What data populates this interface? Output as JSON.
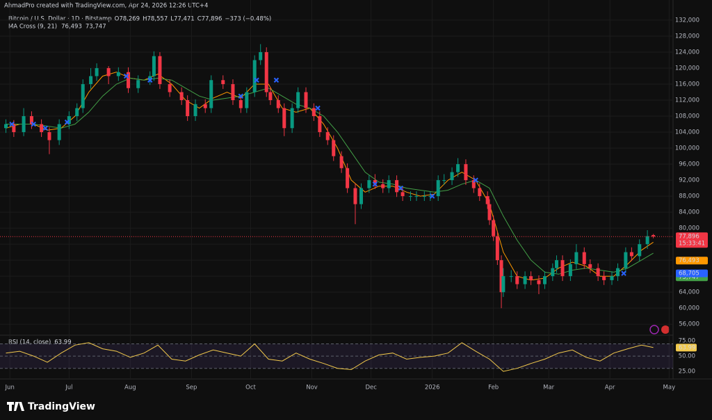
{
  "header": {
    "credit": "AhmadPro created with TradingView.com, Apr 24, 2026 12:26 UTC+4",
    "brand": "TradingView"
  },
  "chart_data": [
    {
      "type": "candlestick",
      "title": "Bitcoin / U.S. Dollar · 1D · Bitstamp",
      "ohlc_legend": [
        "O78,269",
        "H78,557",
        "L77,471",
        "C77,896",
        "−373 (−0.48%)"
      ],
      "indicator_name": "MA Cross (9, 21)",
      "up_color": "#089981",
      "down_color": "#f23645",
      "x": [
        -2,
        2,
        7,
        11,
        16,
        20,
        25,
        30,
        34,
        37,
        41,
        44,
        50,
        55,
        60,
        65,
        71,
        73,
        76,
        81,
        87,
        90,
        94,
        99,
        102,
        108,
        113,
        117,
        120,
        124,
        127,
        130,
        132,
        136,
        139,
        143,
        146,
        150,
        154,
        157,
        161,
        164,
        168,
        171,
        175,
        178,
        182,
        185,
        189,
        192,
        196,
        199,
        203,
        206,
        210,
        213,
        217,
        220,
        224,
        227,
        231,
        235,
        238,
        242,
        243,
        245,
        247,
        249,
        250,
        254,
        257,
        261,
        264,
        268,
        271,
        275,
        277,
        280,
        284,
        287,
        291,
        294,
        298,
        301,
        305,
        308,
        312,
        315,
        319,
        323,
        326
      ],
      "open": [
        105000,
        106000,
        104000,
        108000,
        106000,
        104000,
        102000,
        106000,
        108000,
        110000,
        116000,
        118000,
        120000,
        118000,
        119000,
        115000,
        117000,
        118000,
        123000,
        116000,
        114000,
        112000,
        108000,
        111000,
        110000,
        117000,
        116000,
        112000,
        110000,
        114000,
        122000,
        124000,
        114000,
        112000,
        110000,
        105000,
        110000,
        114000,
        110000,
        108000,
        104000,
        102000,
        98000,
        95000,
        90000,
        86000,
        90000,
        92000,
        91000,
        90000,
        92000,
        89000,
        88000,
        88000,
        88000,
        88000,
        88000,
        92000,
        92000,
        94000,
        96000,
        92000,
        90000,
        88000,
        86000,
        82000,
        78000,
        72000,
        64000,
        68000,
        68000,
        66000,
        68000,
        67000,
        66000,
        68000,
        70000,
        72000,
        68000,
        71000,
        74000,
        71000,
        70000,
        68000,
        67000,
        68000,
        70000,
        74000,
        73000,
        76000,
        78269
      ],
      "high": [
        107200,
        107000,
        110000,
        109200,
        107200,
        105200,
        107200,
        109200,
        111200,
        117200,
        120000,
        121200,
        120500,
        120200,
        120200,
        118200,
        119200,
        124200,
        124000,
        117200,
        115200,
        113200,
        112200,
        112200,
        118200,
        118200,
        117200,
        113200,
        115200,
        123200,
        126000,
        125200,
        115200,
        113200,
        111200,
        111200,
        115200,
        115200,
        111200,
        109200,
        105200,
        103200,
        99200,
        96200,
        91200,
        91200,
        93200,
        93500,
        92200,
        93200,
        93200,
        90200,
        89200,
        89200,
        89200,
        89200,
        93200,
        93500,
        95200,
        97500,
        97200,
        93200,
        91200,
        89200,
        87200,
        83200,
        79200,
        73200,
        70000,
        69500,
        69200,
        69200,
        69200,
        68200,
        69200,
        71200,
        73200,
        73200,
        72200,
        76000,
        75200,
        72200,
        71200,
        69200,
        69200,
        71200,
        75200,
        75200,
        77200,
        79500,
        78557
      ],
      "low": [
        103800,
        102800,
        103000,
        104800,
        102800,
        98500,
        100800,
        104800,
        106800,
        108800,
        114800,
        116800,
        116000,
        116800,
        113800,
        113800,
        115800,
        116800,
        114800,
        112800,
        110800,
        106800,
        106800,
        108800,
        108800,
        114800,
        110800,
        108800,
        108800,
        112800,
        120800,
        112800,
        110800,
        108800,
        103000,
        103800,
        108800,
        108800,
        106800,
        102800,
        100800,
        96800,
        93800,
        88800,
        81000,
        84800,
        88800,
        89800,
        88800,
        88800,
        87800,
        86800,
        86800,
        86800,
        86800,
        86800,
        86800,
        90800,
        90800,
        92800,
        90800,
        88800,
        86800,
        84800,
        80800,
        76800,
        70800,
        60000,
        62800,
        66500,
        64800,
        64800,
        65800,
        63500,
        64800,
        66800,
        68800,
        66800,
        66800,
        69800,
        69800,
        68800,
        66800,
        65800,
        65800,
        66800,
        68800,
        71800,
        71800,
        74800,
        77471
      ],
      "close": [
        106000,
        104000,
        108000,
        106000,
        104000,
        102000,
        106000,
        108000,
        110000,
        116000,
        118000,
        120000,
        118000,
        119000,
        115000,
        117000,
        118000,
        123000,
        116000,
        114000,
        112000,
        108000,
        111000,
        110000,
        117000,
        116000,
        112000,
        110000,
        114000,
        122000,
        124000,
        114000,
        112000,
        110000,
        105000,
        110000,
        114000,
        110000,
        108000,
        104000,
        102000,
        98000,
        95000,
        90000,
        86000,
        90000,
        92000,
        91000,
        90000,
        92000,
        89000,
        88000,
        88000,
        88000,
        88000,
        88000,
        92000,
        92000,
        94000,
        96000,
        92000,
        90000,
        88000,
        86000,
        82000,
        78000,
        72000,
        64000,
        68000,
        68000,
        66000,
        68000,
        67000,
        66000,
        68000,
        70000,
        72000,
        68000,
        71000,
        74000,
        71000,
        70000,
        68000,
        67000,
        68000,
        70000,
        74000,
        73000,
        76000,
        78000,
        77896
      ],
      "last_price_label": "77,896",
      "countdown": "15:33:41",
      "series": [
        {
          "color": "#ff9800",
          "last_label": "76,493",
          "x": [
            -2,
            5,
            12,
            19,
            26,
            33,
            40,
            47,
            54,
            61,
            68,
            75,
            82,
            89,
            96,
            103,
            110,
            117,
            124,
            131,
            138,
            145,
            152,
            159,
            166,
            173,
            180,
            187,
            194,
            201,
            208,
            215,
            222,
            229,
            236,
            243,
            250,
            257,
            264,
            271,
            278,
            285,
            292,
            299,
            306,
            313,
            320,
            326
          ],
          "values": [
            105000,
            106000,
            106000,
            104500,
            105000,
            108000,
            114000,
            118000,
            119000,
            117500,
            117000,
            118500,
            116000,
            112000,
            110000,
            112500,
            114000,
            112500,
            116000,
            116000,
            110000,
            109000,
            110000,
            106000,
            100000,
            92000,
            89000,
            90500,
            90500,
            89000,
            88000,
            88500,
            92000,
            94000,
            92000,
            86000,
            74000,
            68000,
            67000,
            67500,
            70000,
            71500,
            70500,
            68000,
            68000,
            71000,
            74500,
            76493
          ]
        },
        {
          "color": "#43a047",
          "last_label": "73,747",
          "x": [
            -2,
            5,
            12,
            19,
            26,
            33,
            40,
            47,
            54,
            61,
            68,
            75,
            82,
            89,
            96,
            103,
            110,
            117,
            124,
            131,
            138,
            145,
            152,
            159,
            166,
            173,
            180,
            187,
            194,
            201,
            208,
            215,
            222,
            229,
            236,
            243,
            250,
            257,
            264,
            271,
            278,
            285,
            292,
            299,
            306,
            313,
            320,
            326
          ],
          "values": [
            106000,
            106000,
            106000,
            105500,
            105000,
            106000,
            109000,
            113000,
            116000,
            117500,
            117000,
            117500,
            117000,
            115000,
            113000,
            112000,
            112500,
            113000,
            114000,
            115000,
            113000,
            111000,
            110000,
            108000,
            104000,
            99000,
            94000,
            91500,
            91000,
            90000,
            89500,
            89000,
            89500,
            91000,
            92000,
            90000,
            83000,
            77000,
            72000,
            69000,
            68500,
            69500,
            70000,
            69500,
            69000,
            70000,
            72000,
            73747
          ]
        }
      ],
      "crosses": {
        "color": "#2962ff",
        "x": [
          1,
          12,
          18,
          29,
          59,
          71,
          117,
          125,
          135,
          156,
          185,
          198,
          214,
          236,
          311
        ],
        "values": [
          106000,
          106000,
          105000,
          106500,
          118000,
          117000,
          113000,
          117000,
          117000,
          110000,
          91000,
          90000,
          88000,
          92000,
          68700
        ]
      },
      "marker_tag": {
        "value": 68705,
        "label": "68,705",
        "color": "#2962ff"
      },
      "xlim": [
        -5,
        336
      ],
      "xticks": [
        {
          "value": 0,
          "label": "Jun"
        },
        {
          "value": 30,
          "label": "Jul"
        },
        {
          "value": 61,
          "label": "Aug"
        },
        {
          "value": 92,
          "label": "Sep"
        },
        {
          "value": 122,
          "label": "Oct"
        },
        {
          "value": 153,
          "label": "Nov"
        },
        {
          "value": 183,
          "label": "Dec"
        },
        {
          "value": 214,
          "label": "2026"
        },
        {
          "value": 245,
          "label": "Feb"
        },
        {
          "value": 273,
          "label": "Mar"
        },
        {
          "value": 304,
          "label": "Apr"
        },
        {
          "value": 334,
          "label": "May"
        }
      ],
      "ylim": [
        53600,
        133900
      ],
      "yticks": [
        {
          "value": 56000,
          "label": "56,000"
        },
        {
          "value": 60000,
          "label": "60,000"
        },
        {
          "value": 64000,
          "label": "64,000"
        },
        {
          "value": 68000,
          "label": "68,000"
        },
        {
          "value": 72000,
          "label": "72,000"
        },
        {
          "value": 76000,
          "label": "76,000"
        },
        {
          "value": 80000,
          "label": "80,000"
        },
        {
          "value": 84000,
          "label": "84,000"
        },
        {
          "value": 88000,
          "label": "88,000"
        },
        {
          "value": 92000,
          "label": "92,000"
        },
        {
          "value": 96000,
          "label": "96,000"
        },
        {
          "value": 100000,
          "label": "100,000"
        },
        {
          "value": 104000,
          "label": "104,000"
        },
        {
          "value": 108000,
          "label": "108,000"
        },
        {
          "value": 112000,
          "label": "112,000"
        },
        {
          "value": 116000,
          "label": "116,000"
        },
        {
          "value": 120000,
          "label": "120,000"
        },
        {
          "value": 124000,
          "label": "124,000"
        },
        {
          "value": 128000,
          "label": "128,000"
        },
        {
          "value": 132000,
          "label": "132,000"
        }
      ],
      "grid": true
    },
    {
      "type": "line",
      "title": "RSI (14, close)",
      "last_label": "63.99",
      "color": "#f2c94c",
      "x": [
        -2,
        5,
        12,
        19,
        26,
        33,
        40,
        47,
        54,
        61,
        68,
        75,
        82,
        89,
        96,
        103,
        110,
        117,
        124,
        131,
        138,
        145,
        152,
        159,
        166,
        173,
        180,
        187,
        194,
        201,
        208,
        215,
        222,
        229,
        236,
        243,
        250,
        257,
        264,
        271,
        278,
        285,
        292,
        299,
        306,
        313,
        320,
        326
      ],
      "values": [
        55,
        58,
        50,
        40,
        55,
        68,
        72,
        62,
        58,
        48,
        55,
        68,
        45,
        42,
        52,
        60,
        55,
        50,
        70,
        45,
        42,
        55,
        45,
        38,
        30,
        28,
        42,
        52,
        55,
        45,
        48,
        50,
        55,
        72,
        58,
        45,
        25,
        30,
        38,
        45,
        55,
        60,
        48,
        42,
        55,
        62,
        68,
        63.99
      ],
      "levels": [
        30,
        50,
        70
      ],
      "ylim": [
        16,
        82
      ],
      "yticks": [
        {
          "value": 25,
          "label": "25.00"
        },
        {
          "value": 50,
          "label": "50.00"
        },
        {
          "value": 75,
          "label": "75.00"
        }
      ]
    }
  ]
}
